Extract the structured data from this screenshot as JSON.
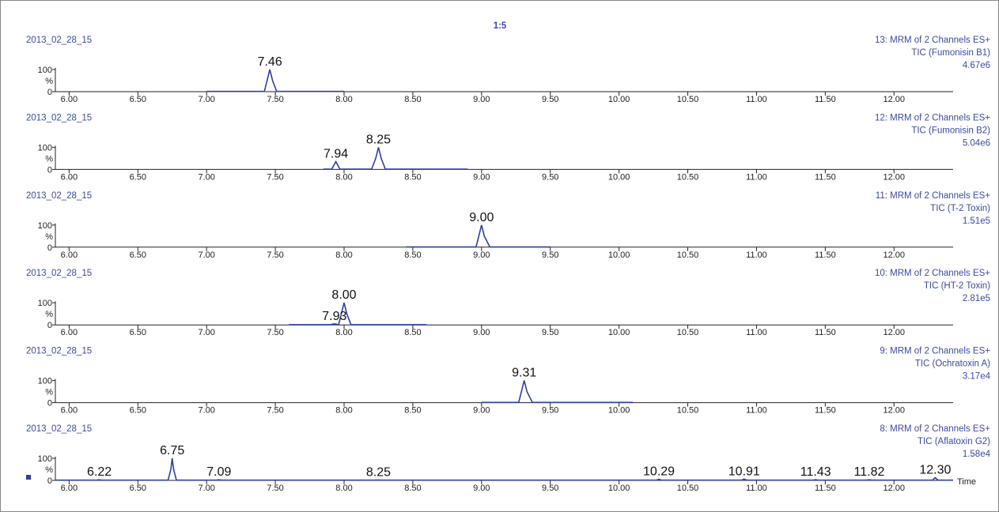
{
  "page_label": "1:5",
  "chart_data": [
    {
      "type": "line",
      "title": "2013_02_28_15",
      "right_labels": [
        "13: MRM of 2 Channels ES+",
        "TIC (Fumonisin B1)",
        "4.67e6"
      ],
      "ylabel": "%",
      "x": [
        7.0,
        7.42,
        7.44,
        7.46,
        7.48,
        7.51,
        8.0
      ],
      "values": [
        1,
        1,
        50,
        100,
        50,
        1,
        1
      ],
      "color": "#2f3f9f",
      "peaks": [
        7.46
      ],
      "peak_labels": [
        "7.46"
      ],
      "xlim": [
        5.9,
        12.43
      ],
      "ylim": [
        0,
        100
      ],
      "yticks": [
        0,
        100
      ],
      "xticks": [
        {
          "value": 6,
          "label": "6.00"
        },
        {
          "value": 6.5,
          "label": "6.50"
        },
        {
          "value": 7,
          "label": "7.00"
        },
        {
          "value": 7.5,
          "label": "7.50"
        },
        {
          "value": 8,
          "label": "8.00"
        },
        {
          "value": 8.5,
          "label": "8.50"
        },
        {
          "value": 9,
          "label": "9.00"
        },
        {
          "value": 9.5,
          "label": "9.50"
        },
        {
          "value": 10,
          "label": "10.00"
        },
        {
          "value": 10.5,
          "label": "10.50"
        },
        {
          "value": 11,
          "label": "11.00"
        },
        {
          "value": 11.5,
          "label": "11.50"
        },
        {
          "value": 12,
          "label": "12.00"
        }
      ]
    },
    {
      "type": "line",
      "title": "2013_02_28_15",
      "right_labels": [
        "12: MRM of 2 Channels ES+",
        "TIC (Fumonisin B2)",
        "5.04e6"
      ],
      "ylabel": "%",
      "x": [
        7.85,
        7.91,
        7.94,
        7.97,
        8.2,
        8.23,
        8.25,
        8.27,
        8.3,
        8.9
      ],
      "values": [
        1,
        1,
        35,
        1,
        1,
        50,
        100,
        50,
        1,
        1
      ],
      "color": "#2f3f9f",
      "peaks": [
        7.94,
        8.25
      ],
      "peak_labels": [
        "7.94",
        "8.25"
      ],
      "xlim": [
        5.9,
        12.43
      ],
      "ylim": [
        0,
        100
      ],
      "yticks": [
        0,
        100
      ],
      "xticks": [
        {
          "value": 6,
          "label": "6.00"
        },
        {
          "value": 6.5,
          "label": "6.50"
        },
        {
          "value": 7,
          "label": "7.00"
        },
        {
          "value": 7.5,
          "label": "7.50"
        },
        {
          "value": 8,
          "label": "8.00"
        },
        {
          "value": 8.5,
          "label": "8.50"
        },
        {
          "value": 9,
          "label": "9.00"
        },
        {
          "value": 9.5,
          "label": "9.50"
        },
        {
          "value": 10,
          "label": "10.00"
        },
        {
          "value": 10.5,
          "label": "10.50"
        },
        {
          "value": 11,
          "label": "11.00"
        },
        {
          "value": 11.5,
          "label": "11.50"
        },
        {
          "value": 12,
          "label": "12.00"
        }
      ]
    },
    {
      "type": "line",
      "title": "2013_02_28_15",
      "right_labels": [
        "11: MRM of 2 Channels ES+",
        "TIC (T-2 Toxin)",
        "1.51e5"
      ],
      "ylabel": "%",
      "x": [
        8.45,
        8.96,
        8.98,
        9.0,
        9.02,
        9.06,
        9.5
      ],
      "values": [
        1,
        1,
        50,
        100,
        50,
        1,
        1
      ],
      "color": "#2f3f9f",
      "peaks": [
        9.0
      ],
      "peak_labels": [
        "9.00"
      ],
      "xlim": [
        5.9,
        12.43
      ],
      "ylim": [
        0,
        100
      ],
      "yticks": [
        0,
        100
      ],
      "xticks": [
        {
          "value": 6,
          "label": "6.00"
        },
        {
          "value": 6.5,
          "label": "6.50"
        },
        {
          "value": 7,
          "label": "7.00"
        },
        {
          "value": 7.5,
          "label": "7.50"
        },
        {
          "value": 8,
          "label": "8.00"
        },
        {
          "value": 8.5,
          "label": "8.50"
        },
        {
          "value": 9,
          "label": "9.00"
        },
        {
          "value": 9.5,
          "label": "9.50"
        },
        {
          "value": 10,
          "label": "10.00"
        },
        {
          "value": 10.5,
          "label": "10.50"
        },
        {
          "value": 11,
          "label": "11.00"
        },
        {
          "value": 11.5,
          "label": "11.50"
        },
        {
          "value": 12,
          "label": "12.00"
        }
      ]
    },
    {
      "type": "line",
      "title": "2013_02_28_15",
      "right_labels": [
        "10: MRM of 2 Channels ES+",
        "TIC (HT-2 Toxin)",
        "2.81e5"
      ],
      "ylabel": "%",
      "x": [
        7.6,
        7.9,
        7.93,
        7.96,
        7.98,
        8.0,
        8.02,
        8.05,
        8.6
      ],
      "values": [
        1,
        1,
        5,
        1,
        50,
        100,
        50,
        1,
        1
      ],
      "color": "#2f3f9f",
      "peaks": [
        7.93,
        8.0
      ],
      "peak_labels": [
        "7.93",
        "8.00"
      ],
      "xlim": [
        5.9,
        12.43
      ],
      "ylim": [
        0,
        100
      ],
      "yticks": [
        0,
        100
      ],
      "xticks": [
        {
          "value": 6,
          "label": "6.00"
        },
        {
          "value": 6.5,
          "label": "6.50"
        },
        {
          "value": 7,
          "label": "7.00"
        },
        {
          "value": 7.5,
          "label": "7.50"
        },
        {
          "value": 8,
          "label": "8.00"
        },
        {
          "value": 8.5,
          "label": "8.50"
        },
        {
          "value": 9,
          "label": "9.00"
        },
        {
          "value": 9.5,
          "label": "9.50"
        },
        {
          "value": 10,
          "label": "10.00"
        },
        {
          "value": 10.5,
          "label": "10.50"
        },
        {
          "value": 11,
          "label": "11.00"
        },
        {
          "value": 11.5,
          "label": "11.50"
        },
        {
          "value": 12,
          "label": "12.00"
        }
      ]
    },
    {
      "type": "line",
      "title": "2013_02_28_15",
      "right_labels": [
        "9: MRM of 2 Channels ES+",
        "TIC (Ochratoxin A)",
        "3.17e4"
      ],
      "ylabel": "%",
      "x": [
        9.0,
        9.27,
        9.29,
        9.31,
        9.33,
        9.37,
        10.1
      ],
      "values": [
        1,
        1,
        50,
        100,
        50,
        1,
        1
      ],
      "color": "#2f3f9f",
      "peaks": [
        9.31
      ],
      "peak_labels": [
        "9.31"
      ],
      "xlim": [
        5.9,
        12.43
      ],
      "ylim": [
        0,
        100
      ],
      "yticks": [
        0,
        100
      ],
      "xticks": [
        {
          "value": 6,
          "label": "6.00"
        },
        {
          "value": 6.5,
          "label": "6.50"
        },
        {
          "value": 7,
          "label": "7.00"
        },
        {
          "value": 7.5,
          "label": "7.50"
        },
        {
          "value": 8,
          "label": "8.00"
        },
        {
          "value": 8.5,
          "label": "8.50"
        },
        {
          "value": 9,
          "label": "9.00"
        },
        {
          "value": 9.5,
          "label": "9.50"
        },
        {
          "value": 10,
          "label": "10.00"
        },
        {
          "value": 10.5,
          "label": "10.50"
        },
        {
          "value": 11,
          "label": "11.00"
        },
        {
          "value": 11.5,
          "label": "11.50"
        },
        {
          "value": 12,
          "label": "12.00"
        }
      ]
    },
    {
      "type": "line",
      "title": "2013_02_28_15",
      "right_labels": [
        "8: MRM of 2 Channels ES+",
        "TIC (Aflatoxin G2)",
        "1.58e4"
      ],
      "ylabel": "%",
      "xlabel": "Time",
      "x": [
        5.9,
        6.2,
        6.22,
        6.24,
        6.72,
        6.74,
        6.75,
        6.76,
        6.78,
        7.07,
        7.09,
        7.11,
        8.23,
        8.25,
        8.27,
        10.27,
        10.29,
        10.31,
        10.89,
        10.91,
        10.93,
        11.41,
        11.43,
        11.45,
        11.8,
        11.82,
        11.84,
        12.28,
        12.3,
        12.32,
        12.43
      ],
      "values": [
        1,
        1,
        3,
        1,
        1,
        50,
        100,
        50,
        1,
        1,
        3,
        1,
        1,
        2,
        1,
        1,
        5,
        1,
        1,
        6,
        1,
        1,
        3,
        1,
        1,
        3,
        1,
        1,
        12,
        1,
        1
      ],
      "color": "#2f3f9f",
      "peaks": [
        6.22,
        6.75,
        7.09,
        8.25,
        10.29,
        10.91,
        11.43,
        11.82,
        12.3
      ],
      "peak_labels": [
        "6.22",
        "6.75",
        "7.09",
        "8.25",
        "10.29",
        "10.91",
        "11.43",
        "11.82",
        "12.30"
      ],
      "xlim": [
        5.9,
        12.43
      ],
      "ylim": [
        0,
        100
      ],
      "yticks": [
        0,
        100
      ],
      "xticks": [
        {
          "value": 6,
          "label": "6.00"
        },
        {
          "value": 6.5,
          "label": "6.50"
        },
        {
          "value": 7,
          "label": "7.00"
        },
        {
          "value": 7.5,
          "label": "7.50"
        },
        {
          "value": 8,
          "label": "8.00"
        },
        {
          "value": 8.5,
          "label": "8.50"
        },
        {
          "value": 9,
          "label": "9.00"
        },
        {
          "value": 9.5,
          "label": "9.50"
        },
        {
          "value": 10,
          "label": "10.00"
        },
        {
          "value": 10.5,
          "label": "10.50"
        },
        {
          "value": 11,
          "label": "11.00"
        },
        {
          "value": 11.5,
          "label": "11.50"
        },
        {
          "value": 12,
          "label": "12.00"
        }
      ]
    }
  ]
}
